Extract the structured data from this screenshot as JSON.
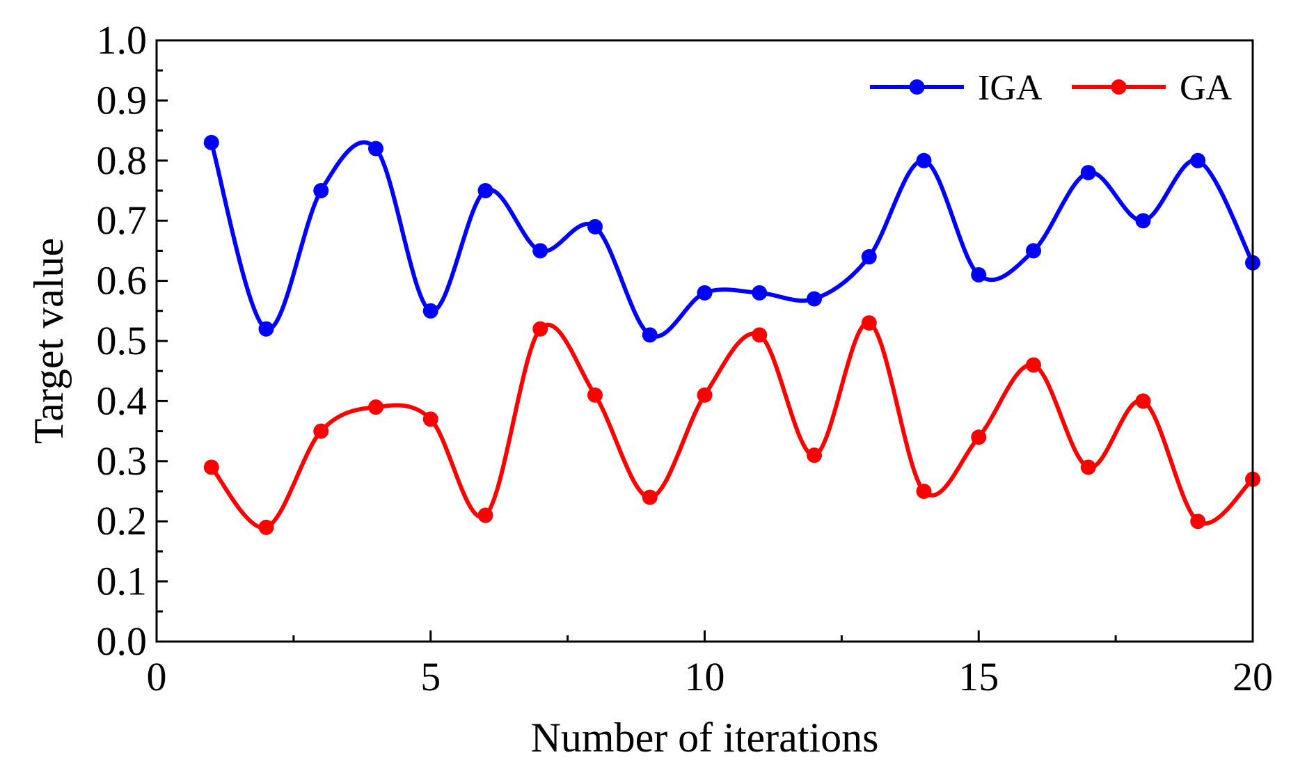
{
  "chart_data": {
    "type": "line",
    "title": "",
    "xlabel": "Number of iterations",
    "ylabel": "Target value",
    "xlim": [
      0,
      20
    ],
    "ylim": [
      0.0,
      1.0
    ],
    "xticks": [
      0,
      5,
      10,
      15,
      20
    ],
    "xtick_labels": [
      "0",
      "5",
      "10",
      "15",
      "20"
    ],
    "yticks": [
      0.0,
      0.1,
      0.2,
      0.3,
      0.4,
      0.5,
      0.6,
      0.7,
      0.8,
      0.9,
      1.0
    ],
    "ytick_labels": [
      "0.0",
      "0.1",
      "0.2",
      "0.3",
      "0.4",
      "0.5",
      "0.6",
      "0.7",
      "0.8",
      "0.9",
      "1.0"
    ],
    "grid": false,
    "legend_position": "top-right",
    "x": [
      1,
      2,
      3,
      4,
      5,
      6,
      7,
      8,
      9,
      10,
      11,
      12,
      13,
      14,
      15,
      16,
      17,
      18,
      19,
      20
    ],
    "series": [
      {
        "name": "IGA",
        "color": "#0000ff",
        "values": [
          0.83,
          0.52,
          0.75,
          0.82,
          0.55,
          0.75,
          0.65,
          0.69,
          0.51,
          0.58,
          0.58,
          0.57,
          0.64,
          0.8,
          0.61,
          0.65,
          0.78,
          0.7,
          0.8,
          0.63
        ]
      },
      {
        "name": "GA",
        "color": "#ff0000",
        "values": [
          0.29,
          0.19,
          0.35,
          0.39,
          0.37,
          0.21,
          0.52,
          0.41,
          0.24,
          0.41,
          0.51,
          0.31,
          0.53,
          0.25,
          0.34,
          0.46,
          0.29,
          0.4,
          0.2,
          0.27
        ]
      }
    ]
  }
}
